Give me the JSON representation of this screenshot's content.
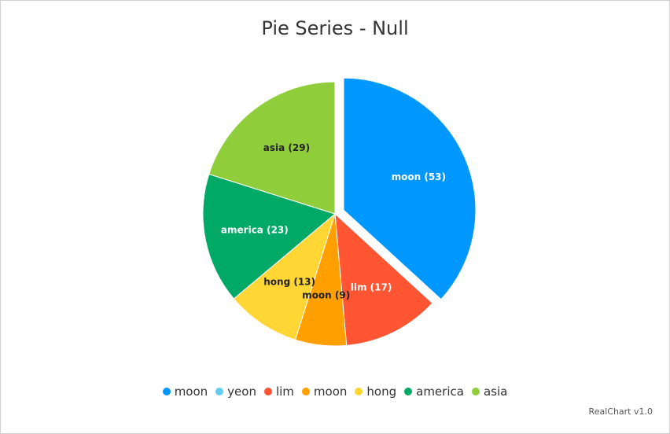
{
  "chart_data": {
    "type": "pie",
    "title": "Pie Series - Null",
    "slices": [
      {
        "label": "moon",
        "value": 53,
        "color": "#0098ff",
        "exploded": true
      },
      {
        "label": "yeon",
        "value": null,
        "color": "#66ccf0"
      },
      {
        "label": "lim",
        "value": 17,
        "color": "#ff5533"
      },
      {
        "label": "moon",
        "value": 9,
        "color": "#ffa000"
      },
      {
        "label": "hong",
        "value": 13,
        "color": "#ffd633"
      },
      {
        "label": "america",
        "value": 23,
        "color": "#00aa66"
      },
      {
        "label": "asia",
        "value": 29,
        "color": "#90cd3a"
      }
    ],
    "legend_position": "bottom"
  },
  "credits": "RealChart v1.0"
}
